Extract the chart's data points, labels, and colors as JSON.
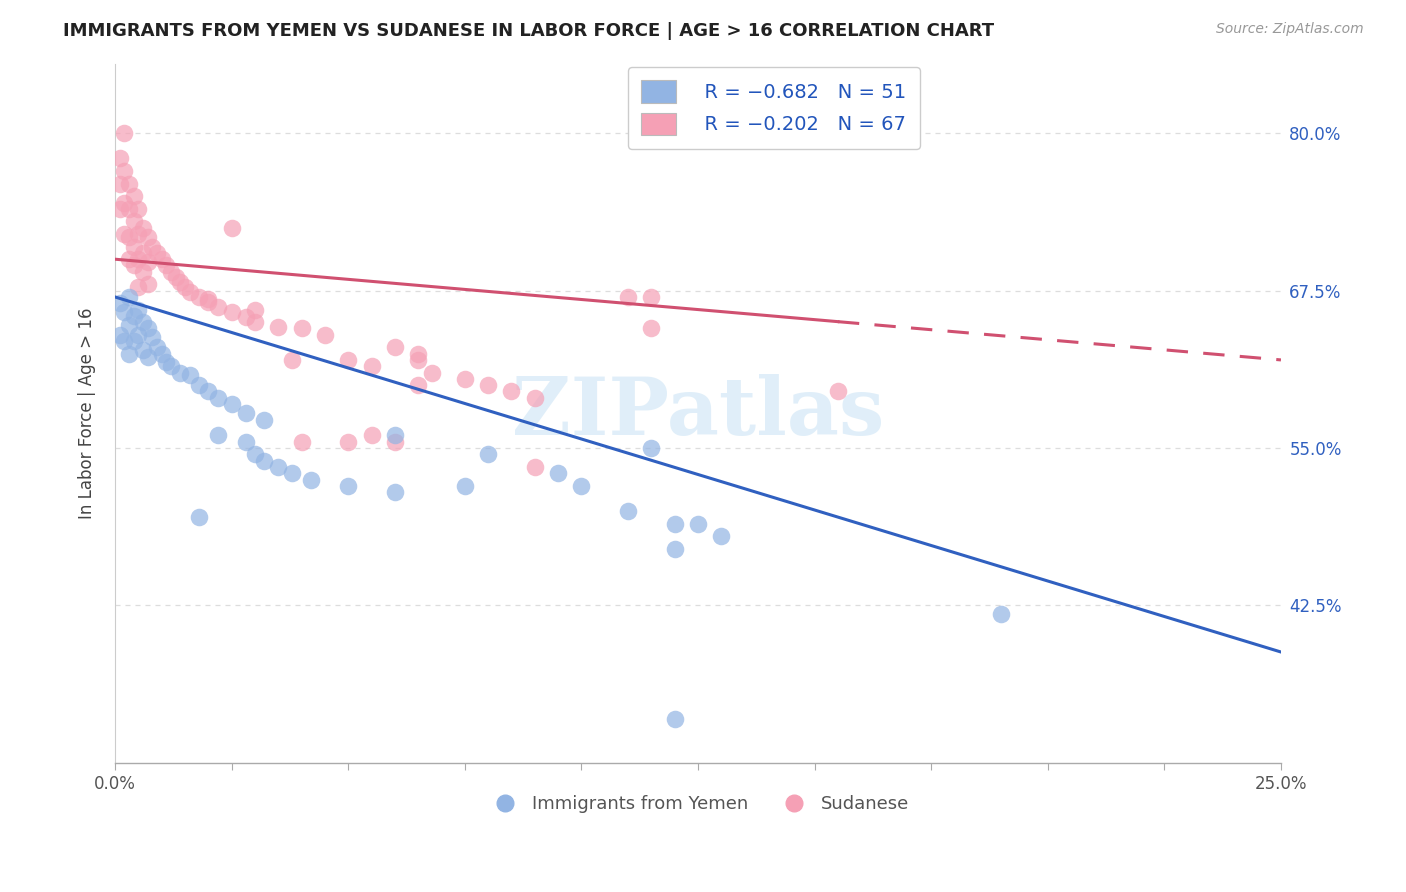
{
  "title": "IMMIGRANTS FROM YEMEN VS SUDANESE IN LABOR FORCE | AGE > 16 CORRELATION CHART",
  "source": "Source: ZipAtlas.com",
  "ylabel": "In Labor Force | Age > 16",
  "ytick_labels": [
    "80.0%",
    "67.5%",
    "55.0%",
    "42.5%"
  ],
  "ytick_values": [
    0.8,
    0.675,
    0.55,
    0.425
  ],
  "xlim": [
    0.0,
    0.25
  ],
  "ylim": [
    0.3,
    0.855
  ],
  "legend_r_yemen": "R = −0.682",
  "legend_n_yemen": "N = 51",
  "legend_r_sudanese": "R = −0.202",
  "legend_n_sudanese": "N = 67",
  "legend_label_yemen": "Immigrants from Yemen",
  "legend_label_sudanese": "Sudanese",
  "color_yemen": "#92b4e3",
  "color_sudanese": "#f5a0b5",
  "color_trend_yemen": "#3060c0",
  "color_trend_sudanese": "#d05070",
  "watermark": "ZIPatlas",
  "yemen_points": [
    [
      0.001,
      0.665
    ],
    [
      0.001,
      0.64
    ],
    [
      0.002,
      0.658
    ],
    [
      0.002,
      0.635
    ],
    [
      0.003,
      0.67
    ],
    [
      0.003,
      0.648
    ],
    [
      0.003,
      0.625
    ],
    [
      0.004,
      0.655
    ],
    [
      0.004,
      0.635
    ],
    [
      0.005,
      0.66
    ],
    [
      0.005,
      0.64
    ],
    [
      0.006,
      0.65
    ],
    [
      0.006,
      0.628
    ],
    [
      0.007,
      0.645
    ],
    [
      0.007,
      0.622
    ],
    [
      0.008,
      0.638
    ],
    [
      0.009,
      0.63
    ],
    [
      0.01,
      0.625
    ],
    [
      0.011,
      0.618
    ],
    [
      0.012,
      0.615
    ],
    [
      0.014,
      0.61
    ],
    [
      0.016,
      0.608
    ],
    [
      0.018,
      0.6
    ],
    [
      0.02,
      0.595
    ],
    [
      0.022,
      0.59
    ],
    [
      0.025,
      0.585
    ],
    [
      0.028,
      0.578
    ],
    [
      0.032,
      0.572
    ],
    [
      0.018,
      0.495
    ],
    [
      0.022,
      0.56
    ],
    [
      0.028,
      0.555
    ],
    [
      0.03,
      0.545
    ],
    [
      0.032,
      0.54
    ],
    [
      0.035,
      0.535
    ],
    [
      0.038,
      0.53
    ],
    [
      0.042,
      0.525
    ],
    [
      0.05,
      0.52
    ],
    [
      0.06,
      0.515
    ],
    [
      0.06,
      0.56
    ],
    [
      0.075,
      0.52
    ],
    [
      0.08,
      0.545
    ],
    [
      0.095,
      0.53
    ],
    [
      0.1,
      0.52
    ],
    [
      0.11,
      0.5
    ],
    [
      0.12,
      0.49
    ],
    [
      0.13,
      0.48
    ],
    [
      0.12,
      0.47
    ],
    [
      0.125,
      0.49
    ],
    [
      0.19,
      0.418
    ],
    [
      0.115,
      0.55
    ],
    [
      0.12,
      0.335
    ]
  ],
  "sudanese_points": [
    [
      0.001,
      0.78
    ],
    [
      0.001,
      0.76
    ],
    [
      0.001,
      0.74
    ],
    [
      0.002,
      0.8
    ],
    [
      0.002,
      0.77
    ],
    [
      0.002,
      0.745
    ],
    [
      0.002,
      0.72
    ],
    [
      0.003,
      0.76
    ],
    [
      0.003,
      0.74
    ],
    [
      0.003,
      0.718
    ],
    [
      0.003,
      0.7
    ],
    [
      0.004,
      0.75
    ],
    [
      0.004,
      0.73
    ],
    [
      0.004,
      0.71
    ],
    [
      0.004,
      0.695
    ],
    [
      0.005,
      0.74
    ],
    [
      0.005,
      0.72
    ],
    [
      0.005,
      0.7
    ],
    [
      0.005,
      0.678
    ],
    [
      0.006,
      0.725
    ],
    [
      0.006,
      0.705
    ],
    [
      0.006,
      0.69
    ],
    [
      0.007,
      0.718
    ],
    [
      0.007,
      0.698
    ],
    [
      0.007,
      0.68
    ],
    [
      0.008,
      0.71
    ],
    [
      0.009,
      0.705
    ],
    [
      0.01,
      0.7
    ],
    [
      0.011,
      0.695
    ],
    [
      0.012,
      0.69
    ],
    [
      0.013,
      0.686
    ],
    [
      0.014,
      0.682
    ],
    [
      0.015,
      0.678
    ],
    [
      0.016,
      0.674
    ],
    [
      0.018,
      0.67
    ],
    [
      0.02,
      0.666
    ],
    [
      0.022,
      0.662
    ],
    [
      0.025,
      0.658
    ],
    [
      0.028,
      0.654
    ],
    [
      0.03,
      0.65
    ],
    [
      0.035,
      0.646
    ],
    [
      0.038,
      0.62
    ],
    [
      0.04,
      0.645
    ],
    [
      0.045,
      0.64
    ],
    [
      0.05,
      0.555
    ],
    [
      0.05,
      0.62
    ],
    [
      0.055,
      0.615
    ],
    [
      0.06,
      0.555
    ],
    [
      0.06,
      0.63
    ],
    [
      0.065,
      0.6
    ],
    [
      0.065,
      0.62
    ],
    [
      0.068,
      0.61
    ],
    [
      0.075,
      0.605
    ],
    [
      0.08,
      0.6
    ],
    [
      0.085,
      0.595
    ],
    [
      0.09,
      0.59
    ],
    [
      0.02,
      0.668
    ],
    [
      0.025,
      0.725
    ],
    [
      0.03,
      0.66
    ],
    [
      0.04,
      0.555
    ],
    [
      0.055,
      0.56
    ],
    [
      0.065,
      0.625
    ],
    [
      0.09,
      0.535
    ],
    [
      0.11,
      0.67
    ],
    [
      0.115,
      0.645
    ],
    [
      0.155,
      0.595
    ],
    [
      0.115,
      0.67
    ]
  ],
  "trend_yemen_x0": 0.0,
  "trend_yemen_y0": 0.67,
  "trend_yemen_x1": 0.25,
  "trend_yemen_y1": 0.388,
  "trend_sudanese_x0": 0.0,
  "trend_sudanese_y0": 0.7,
  "trend_sudanese_x1": 0.25,
  "trend_sudanese_y1": 0.62,
  "trend_sudanese_solid_end": 0.155,
  "background_color": "#ffffff",
  "grid_color": "#dddddd"
}
